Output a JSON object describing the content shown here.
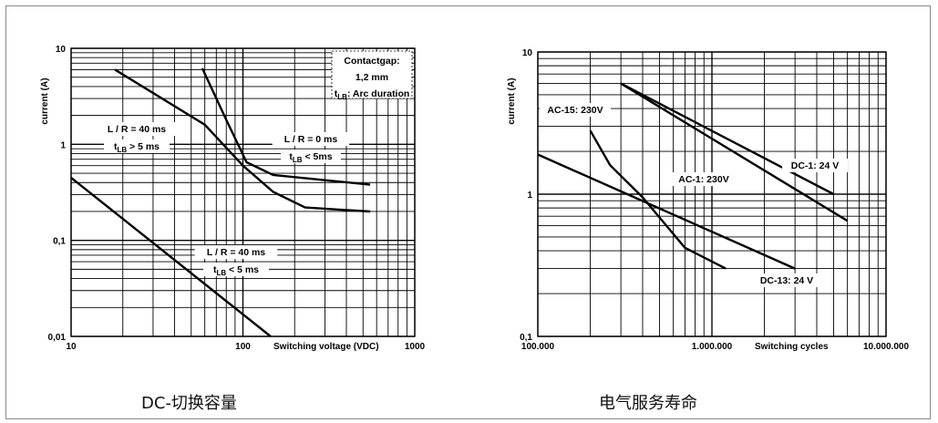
{
  "captions": {
    "left": "DC-切换容量",
    "right": "电气服务寿命"
  },
  "chart_data": [
    {
      "type": "line",
      "x_scale": "log",
      "y_scale": "log",
      "xlim": [
        10,
        1000
      ],
      "ylim": [
        0.01,
        10
      ],
      "x_ticks": [
        {
          "v": 10,
          "label": "10"
        },
        {
          "v": 100,
          "label": "100"
        },
        {
          "v": 1000,
          "label": "1000"
        }
      ],
      "y_ticks": [
        {
          "v": 10,
          "label": "10"
        },
        {
          "v": 1,
          "label": "1"
        },
        {
          "v": 0.1,
          "label": "0,1"
        },
        {
          "v": 0.01,
          "label": "0,01"
        }
      ],
      "xlabel": "Switching voltage (VDC)",
      "ylabel": "current (A)",
      "legend_box": [
        "Contactgap:",
        "1,2 mm",
        "tLB: Arc duration"
      ],
      "series": [
        {
          "points": [
            [
              18,
              6.0
            ],
            [
              60,
              1.6
            ],
            [
              100,
              0.6
            ],
            [
              150,
              0.32
            ],
            [
              230,
              0.22
            ],
            [
              550,
              0.2
            ]
          ]
        },
        {
          "points": [
            [
              58,
              6.2
            ],
            [
              80,
              1.8
            ],
            [
              105,
              0.65
            ],
            [
              150,
              0.48
            ],
            [
              550,
              0.38
            ]
          ]
        },
        {
          "points": [
            [
              10,
              0.45
            ],
            [
              145,
              0.01
            ]
          ]
        }
      ],
      "annotations": [
        {
          "lines": [
            "L / R = 40 ms",
            "tLB > 5 ms"
          ]
        },
        {
          "lines": [
            "L / R = 0 ms",
            "tLB < 5ms"
          ]
        },
        {
          "lines": [
            "L / R = 40 ms",
            "tLB < 5 ms"
          ]
        }
      ]
    },
    {
      "type": "line",
      "x_scale": "log",
      "y_scale": "log",
      "xlim": [
        100000,
        10000000
      ],
      "ylim": [
        0.1,
        10
      ],
      "x_ticks": [
        {
          "v": 100000,
          "label": "100.000"
        },
        {
          "v": 1000000,
          "label": "1.000.000"
        },
        {
          "v": 10000000,
          "label": "10.000.000"
        }
      ],
      "y_ticks": [
        {
          "v": 10,
          "label": "10"
        },
        {
          "v": 1,
          "label": "1"
        },
        {
          "v": 0.1,
          "label": "0,1"
        }
      ],
      "xlabel": "Switching cycles",
      "ylabel": "current (A)",
      "series": [
        {
          "name": "DC-1: 24 V",
          "points": [
            [
              300000,
              6.0
            ],
            [
              5000000,
              1.0
            ]
          ]
        },
        {
          "name": "AC-1: 230V",
          "points": [
            [
              300000,
              6.0
            ],
            [
              6000000,
              0.65
            ]
          ]
        },
        {
          "name": "AC-15: 230V",
          "points": [
            [
              200000,
              2.8
            ],
            [
              260000,
              1.6
            ],
            [
              400000,
              0.95
            ],
            [
              700000,
              0.42
            ],
            [
              1200000,
              0.3
            ]
          ]
        },
        {
          "name": "DC-13: 24 V",
          "points": [
            [
              100000,
              1.9
            ],
            [
              3000000,
              0.3
            ]
          ]
        }
      ],
      "annotations": [
        {
          "lines": [
            "DC-1: 24 V"
          ]
        },
        {
          "lines": [
            "AC-1: 230V"
          ]
        },
        {
          "lines": [
            "AC-15: 230V"
          ]
        },
        {
          "lines": [
            "DC-13: 24 V"
          ]
        }
      ]
    }
  ]
}
